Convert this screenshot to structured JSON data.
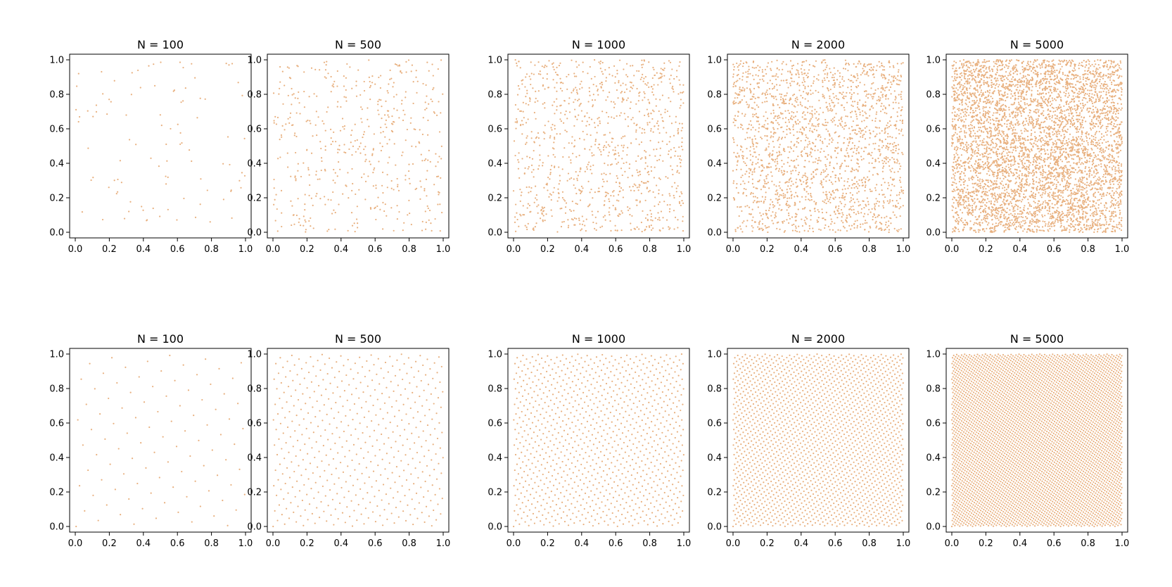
{
  "figure": {
    "marker_color": "#e8b07f"
  },
  "chart_data": [
    {
      "type": "scatter",
      "title": "N = 100",
      "n_points": 100,
      "sampling": "random",
      "xlim": [
        0,
        1
      ],
      "ylim": [
        0,
        1
      ],
      "xticks": [
        "0.0",
        "0.2",
        "0.4",
        "0.6",
        "0.8",
        "1.0"
      ],
      "yticks": [
        "0.0",
        "0.2",
        "0.4",
        "0.6",
        "0.8",
        "1.0"
      ],
      "grid": false
    },
    {
      "type": "scatter",
      "title": "N = 500",
      "n_points": 500,
      "sampling": "random",
      "xlim": [
        0,
        1
      ],
      "ylim": [
        0,
        1
      ],
      "xticks": [
        "0.0",
        "0.2",
        "0.4",
        "0.6",
        "0.8",
        "1.0"
      ],
      "yticks": [
        "0.0",
        "0.2",
        "0.4",
        "0.6",
        "0.8",
        "1.0"
      ],
      "grid": false
    },
    {
      "type": "scatter",
      "title": "N = 1000",
      "n_points": 1000,
      "sampling": "random",
      "xlim": [
        0,
        1
      ],
      "ylim": [
        0,
        1
      ],
      "xticks": [
        "0.0",
        "0.2",
        "0.4",
        "0.6",
        "0.8",
        "1.0"
      ],
      "yticks": [
        "0.0",
        "0.2",
        "0.4",
        "0.6",
        "0.8",
        "1.0"
      ],
      "grid": false
    },
    {
      "type": "scatter",
      "title": "N = 2000",
      "n_points": 2000,
      "sampling": "random",
      "xlim": [
        0,
        1
      ],
      "ylim": [
        0,
        1
      ],
      "xticks": [
        "0.0",
        "0.2",
        "0.4",
        "0.6",
        "0.8",
        "1.0"
      ],
      "yticks": [
        "0.0",
        "0.2",
        "0.4",
        "0.6",
        "0.8",
        "1.0"
      ],
      "grid": false
    },
    {
      "type": "scatter",
      "title": "N = 5000",
      "n_points": 5000,
      "sampling": "random",
      "xlim": [
        0,
        1
      ],
      "ylim": [
        0,
        1
      ],
      "xticks": [
        "0.0",
        "0.2",
        "0.4",
        "0.6",
        "0.8",
        "1.0"
      ],
      "yticks": [
        "0.0",
        "0.2",
        "0.4",
        "0.6",
        "0.8",
        "1.0"
      ],
      "grid": false
    },
    {
      "type": "scatter",
      "title": "N = 100",
      "n_points": 100,
      "sampling": "lattice",
      "xlim": [
        0,
        1
      ],
      "ylim": [
        0,
        1
      ],
      "xticks": [
        "0.0",
        "0.2",
        "0.4",
        "0.6",
        "0.8",
        "1.0"
      ],
      "yticks": [
        "0.0",
        "0.2",
        "0.4",
        "0.6",
        "0.8",
        "1.0"
      ],
      "grid": false
    },
    {
      "type": "scatter",
      "title": "N = 500",
      "n_points": 500,
      "sampling": "lattice",
      "xlim": [
        0,
        1
      ],
      "ylim": [
        0,
        1
      ],
      "xticks": [
        "0.0",
        "0.2",
        "0.4",
        "0.6",
        "0.8",
        "1.0"
      ],
      "yticks": [
        "0.0",
        "0.2",
        "0.4",
        "0.6",
        "0.8",
        "1.0"
      ],
      "grid": false
    },
    {
      "type": "scatter",
      "title": "N = 1000",
      "n_points": 1000,
      "sampling": "lattice",
      "xlim": [
        0,
        1
      ],
      "ylim": [
        0,
        1
      ],
      "xticks": [
        "0.0",
        "0.2",
        "0.4",
        "0.6",
        "0.8",
        "1.0"
      ],
      "yticks": [
        "0.0",
        "0.2",
        "0.4",
        "0.6",
        "0.8",
        "1.0"
      ],
      "grid": false
    },
    {
      "type": "scatter",
      "title": "N = 2000",
      "n_points": 2000,
      "sampling": "lattice",
      "xlim": [
        0,
        1
      ],
      "ylim": [
        0,
        1
      ],
      "xticks": [
        "0.0",
        "0.2",
        "0.4",
        "0.6",
        "0.8",
        "1.0"
      ],
      "yticks": [
        "0.0",
        "0.2",
        "0.4",
        "0.6",
        "0.8",
        "1.0"
      ],
      "grid": false
    },
    {
      "type": "scatter",
      "title": "N = 5000",
      "n_points": 5000,
      "sampling": "lattice",
      "xlim": [
        0,
        1
      ],
      "ylim": [
        0,
        1
      ],
      "xticks": [
        "0.0",
        "0.2",
        "0.4",
        "0.6",
        "0.8",
        "1.0"
      ],
      "yticks": [
        "0.0",
        "0.2",
        "0.4",
        "0.6",
        "0.8",
        "1.0"
      ],
      "grid": false
    }
  ]
}
